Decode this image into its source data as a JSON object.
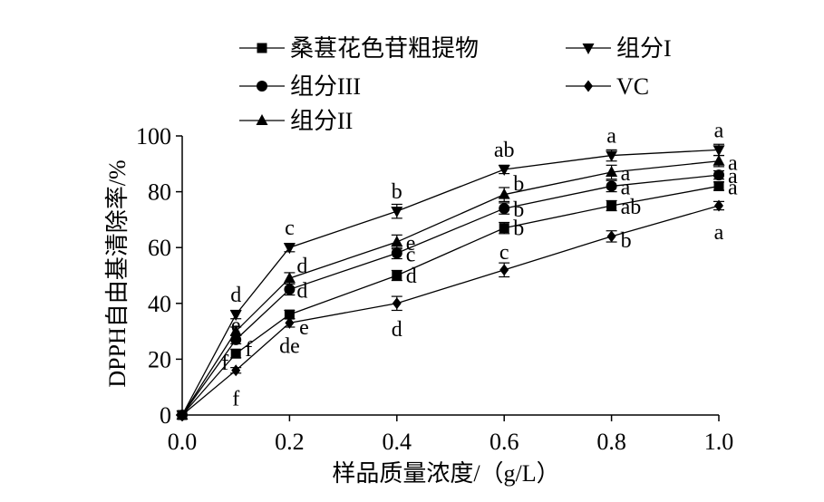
{
  "chart_data": {
    "type": "line",
    "title": "",
    "xlabel": "样品质量浓度/（g/L）",
    "ylabel": "DPPH自由基清除率/%",
    "xlim": [
      0.0,
      1.0
    ],
    "ylim": [
      0,
      100
    ],
    "xticks": [
      "0.0",
      "0.2",
      "0.4",
      "0.6",
      "0.8",
      "1.0"
    ],
    "yticks": [
      "0",
      "20",
      "40",
      "60",
      "80",
      "100"
    ],
    "grid": false,
    "legend_position": "top",
    "x": [
      0.0,
      0.1,
      0.2,
      0.4,
      0.6,
      0.8,
      1.0
    ],
    "series": [
      {
        "name": "桑葚花色苷粗提物",
        "marker": "square",
        "values": [
          0,
          22,
          36,
          50,
          67,
          75,
          82
        ],
        "errors": [
          0,
          1.5,
          1.5,
          1.8,
          2,
          1.8,
          1.5
        ],
        "labels": [
          "",
          "f",
          "e",
          "d",
          "b",
          "ab",
          "a"
        ]
      },
      {
        "name": "组分I",
        "marker": "triangle-down",
        "values": [
          0,
          36,
          60,
          73,
          88,
          93,
          95
        ],
        "errors": [
          0,
          1.5,
          1.5,
          2.5,
          1.5,
          2,
          2
        ],
        "labels": [
          "",
          "d",
          "c",
          "b",
          "ab",
          "a",
          "a"
        ]
      },
      {
        "name": "组分III",
        "marker": "circle",
        "values": [
          0,
          27,
          45,
          58,
          74,
          82,
          86
        ],
        "errors": [
          0,
          1.5,
          2,
          2,
          2,
          2,
          1.5
        ],
        "labels": [
          "",
          "f",
          "d",
          "c",
          "b",
          "a",
          "a"
        ]
      },
      {
        "name": "VC",
        "marker": "diamond",
        "values": [
          0,
          16,
          33,
          40,
          52,
          64,
          75
        ],
        "errors": [
          0,
          1,
          1.5,
          2.5,
          2.5,
          2,
          1.5
        ],
        "labels": [
          "",
          "f",
          "de",
          "d",
          "c",
          "b",
          "a"
        ]
      },
      {
        "name": "组分II",
        "marker": "triangle-up",
        "values": [
          0,
          30,
          49,
          62,
          79,
          87,
          91
        ],
        "errors": [
          0,
          1.5,
          2,
          2.5,
          2.5,
          2.5,
          2
        ],
        "labels": [
          "",
          "e",
          "d",
          "e",
          "b",
          "a",
          "a"
        ]
      }
    ]
  }
}
